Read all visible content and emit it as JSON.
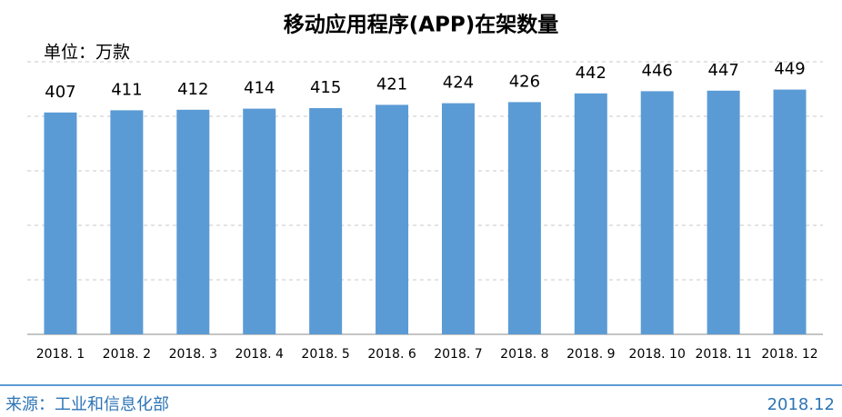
{
  "chart_data": {
    "type": "bar",
    "title": "移动应用程序(APP)在架数量",
    "unit_label": "单位：万款",
    "categories": [
      "2018. 1",
      "2018. 2",
      "2018. 3",
      "2018. 4",
      "2018. 5",
      "2018. 6",
      "2018. 7",
      "2018. 8",
      "2018. 9",
      "2018. 10",
      "2018. 11",
      "2018. 12"
    ],
    "values": [
      407,
      411,
      412,
      414,
      415,
      421,
      424,
      426,
      442,
      446,
      447,
      449
    ],
    "color": "#5b9bd5",
    "ylim": [
      0,
      500
    ],
    "yticks": [
      0,
      100,
      200,
      300,
      400,
      500
    ],
    "grid": true
  },
  "footer": {
    "source": "来源：工业和信息化部",
    "date": "2018.12"
  }
}
